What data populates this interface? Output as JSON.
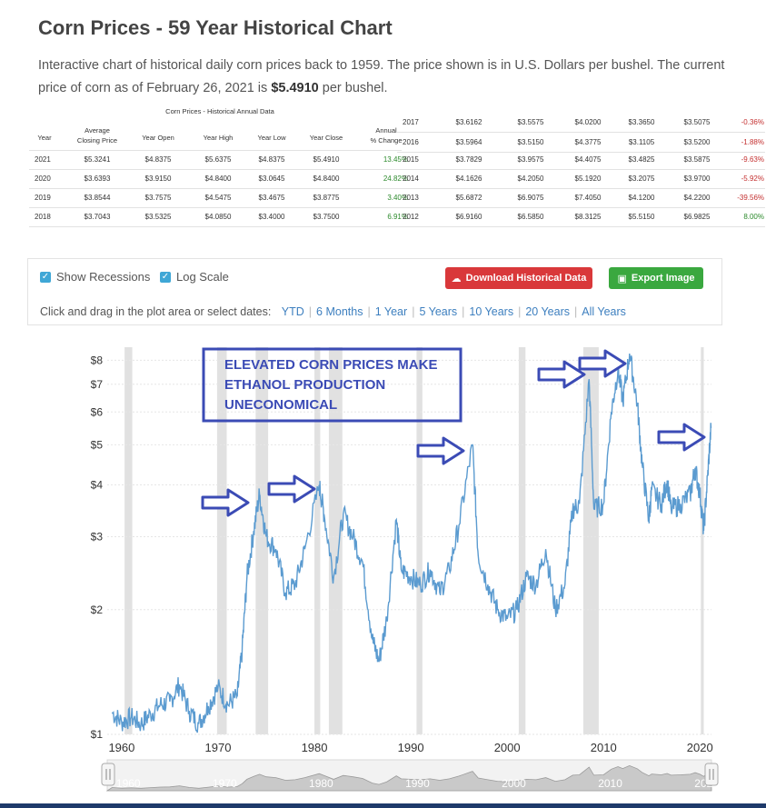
{
  "page": {
    "title": "Corn Prices - 59 Year Historical Chart",
    "desc_pre": "Interactive chart of historical daily corn prices back to 1959. The price shown is in U.S. Dollars per bushel. The current price of corn as of February 26, 2021 is ",
    "desc_price": "$5.4910",
    "desc_post": " per bushel."
  },
  "table": {
    "caption": "Corn Prices - Historical Annual Data",
    "headers": [
      "Year",
      "Average\nClosing Price",
      "Year Open",
      "Year High",
      "Year Low",
      "Year Close",
      "Annual\n% Change"
    ],
    "left_rows": [
      [
        "2021",
        "$5.3241",
        "$4.8375",
        "$5.6375",
        "$4.8375",
        "$5.4910",
        "13.45%"
      ],
      [
        "2020",
        "$3.6393",
        "$3.9150",
        "$4.8400",
        "$3.0645",
        "$4.8400",
        "24.82%"
      ],
      [
        "2019",
        "$3.8544",
        "$3.7575",
        "$4.5475",
        "$3.4675",
        "$3.8775",
        "3.40%"
      ],
      [
        "2018",
        "$3.7043",
        "$3.5325",
        "$4.0850",
        "$3.4000",
        "$3.7500",
        "6.91%"
      ]
    ],
    "right_rows": [
      [
        "2017",
        "$3.6162",
        "$3.5575",
        "$4.0200",
        "$3.3650",
        "$3.5075",
        "-0.36%"
      ],
      [
        "2016",
        "$3.5964",
        "$3.5150",
        "$4.3775",
        "$3.1105",
        "$3.5200",
        "-1.88%"
      ],
      [
        "2015",
        "$3.7829",
        "$3.9575",
        "$4.4075",
        "$3.4825",
        "$3.5875",
        "-9.63%"
      ],
      [
        "2014",
        "$4.1626",
        "$4.2050",
        "$5.1920",
        "$3.2075",
        "$3.9700",
        "-5.92%"
      ],
      [
        "2013",
        "$5.6872",
        "$6.9075",
        "$7.4050",
        "$4.1200",
        "$4.2200",
        "-39.56%"
      ],
      [
        "2012",
        "$6.9160",
        "$6.5850",
        "$8.3125",
        "$5.5150",
        "$6.9825",
        "8.00%"
      ]
    ]
  },
  "controls": {
    "show_recessions": "Show Recessions",
    "log_scale": "Log Scale",
    "download": "Download Historical Data",
    "export": "Export Image",
    "dates_prompt": "Click and drag in the plot area or select dates:",
    "ranges": [
      "YTD",
      "6 Months",
      "1 Year",
      "5 Years",
      "10 Years",
      "20 Years",
      "All Years"
    ]
  },
  "colors": {
    "line": "#5b9bd0",
    "recession": "#dcdcdc",
    "annotation": "#3b4bb5",
    "download_btn": "#d9383a",
    "export_btn": "#3aa83f",
    "checkbox": "#3fa7d6"
  },
  "annotation": {
    "lines": [
      "ELEVATED CORN PRICES MAKE",
      "ETHANOL PRODUCTION",
      "UNECONOMICAL"
    ]
  },
  "chart_data": {
    "type": "line",
    "title": "",
    "xlabel": "",
    "ylabel": "",
    "y_scale": "log",
    "ylim": [
      1,
      8.6
    ],
    "xlim": [
      1958.5,
      2021.2
    ],
    "y_ticks": [
      {
        "value": 1,
        "label": "$1"
      },
      {
        "value": 2,
        "label": "$2"
      },
      {
        "value": 3,
        "label": "$3"
      },
      {
        "value": 4,
        "label": "$4"
      },
      {
        "value": 5,
        "label": "$5"
      },
      {
        "value": 6,
        "label": "$6"
      },
      {
        "value": 7,
        "label": "$7"
      },
      {
        "value": 8,
        "label": "$8"
      }
    ],
    "x_ticks": [
      "1960",
      "1970",
      "1980",
      "1990",
      "2000",
      "2010",
      "2020"
    ],
    "recessions": [
      [
        1960.3,
        1961.1
      ],
      [
        1969.9,
        1970.9
      ],
      [
        1973.9,
        1975.2
      ],
      [
        1980.0,
        1980.6
      ],
      [
        1981.5,
        1982.9
      ],
      [
        1990.6,
        1991.2
      ],
      [
        2001.2,
        2001.9
      ],
      [
        2007.9,
        2009.5
      ],
      [
        2020.1,
        2020.4
      ]
    ],
    "series": [
      {
        "values": [
          {
            "x": 1959.0,
            "y": 1.13
          },
          {
            "x": 1960.0,
            "y": 1.07
          },
          {
            "x": 1961.0,
            "y": 1.1
          },
          {
            "x": 1962.0,
            "y": 1.06
          },
          {
            "x": 1963.0,
            "y": 1.12
          },
          {
            "x": 1964.0,
            "y": 1.18
          },
          {
            "x": 1965.0,
            "y": 1.2
          },
          {
            "x": 1966.0,
            "y": 1.32
          },
          {
            "x": 1967.0,
            "y": 1.14
          },
          {
            "x": 1968.0,
            "y": 1.06
          },
          {
            "x": 1969.0,
            "y": 1.17
          },
          {
            "x": 1970.0,
            "y": 1.3
          },
          {
            "x": 1971.0,
            "y": 1.18
          },
          {
            "x": 1972.0,
            "y": 1.24
          },
          {
            "x": 1972.5,
            "y": 1.6
          },
          {
            "x": 1973.0,
            "y": 2.4
          },
          {
            "x": 1973.7,
            "y": 3.1
          },
          {
            "x": 1974.3,
            "y": 3.8
          },
          {
            "x": 1975.0,
            "y": 3.0
          },
          {
            "x": 1976.0,
            "y": 2.8
          },
          {
            "x": 1977.0,
            "y": 2.2
          },
          {
            "x": 1978.0,
            "y": 2.3
          },
          {
            "x": 1979.0,
            "y": 2.8
          },
          {
            "x": 1980.5,
            "y": 4.0
          },
          {
            "x": 1981.0,
            "y": 3.4
          },
          {
            "x": 1982.0,
            "y": 2.4
          },
          {
            "x": 1983.0,
            "y": 3.4
          },
          {
            "x": 1984.0,
            "y": 3.0
          },
          {
            "x": 1985.0,
            "y": 2.6
          },
          {
            "x": 1986.0,
            "y": 1.7
          },
          {
            "x": 1986.7,
            "y": 1.5
          },
          {
            "x": 1987.5,
            "y": 1.9
          },
          {
            "x": 1988.5,
            "y": 3.3
          },
          {
            "x": 1989.0,
            "y": 2.5
          },
          {
            "x": 1990.0,
            "y": 2.4
          },
          {
            "x": 1991.0,
            "y": 2.3
          },
          {
            "x": 1992.0,
            "y": 2.5
          },
          {
            "x": 1993.0,
            "y": 2.2
          },
          {
            "x": 1994.0,
            "y": 2.5
          },
          {
            "x": 1995.0,
            "y": 3.2
          },
          {
            "x": 1996.4,
            "y": 5.0
          },
          {
            "x": 1997.0,
            "y": 2.7
          },
          {
            "x": 1998.0,
            "y": 2.3
          },
          {
            "x": 1999.0,
            "y": 2.0
          },
          {
            "x": 2000.0,
            "y": 1.9
          },
          {
            "x": 2001.0,
            "y": 2.0
          },
          {
            "x": 2002.0,
            "y": 2.4
          },
          {
            "x": 2003.0,
            "y": 2.3
          },
          {
            "x": 2004.0,
            "y": 2.8
          },
          {
            "x": 2005.0,
            "y": 2.0
          },
          {
            "x": 2006.0,
            "y": 2.3
          },
          {
            "x": 2006.8,
            "y": 3.5
          },
          {
            "x": 2007.5,
            "y": 3.6
          },
          {
            "x": 2008.5,
            "y": 7.2
          },
          {
            "x": 2009.0,
            "y": 3.5
          },
          {
            "x": 2010.0,
            "y": 3.6
          },
          {
            "x": 2010.8,
            "y": 6.0
          },
          {
            "x": 2011.5,
            "y": 7.6
          },
          {
            "x": 2012.0,
            "y": 6.4
          },
          {
            "x": 2012.7,
            "y": 8.3
          },
          {
            "x": 2013.5,
            "y": 6.3
          },
          {
            "x": 2014.0,
            "y": 4.5
          },
          {
            "x": 2014.7,
            "y": 3.3
          },
          {
            "x": 2015.0,
            "y": 3.9
          },
          {
            "x": 2016.0,
            "y": 3.6
          },
          {
            "x": 2016.6,
            "y": 4.1
          },
          {
            "x": 2017.0,
            "y": 3.5
          },
          {
            "x": 2018.0,
            "y": 3.6
          },
          {
            "x": 2019.0,
            "y": 3.8
          },
          {
            "x": 2019.5,
            "y": 4.4
          },
          {
            "x": 2020.0,
            "y": 3.8
          },
          {
            "x": 2020.4,
            "y": 3.1
          },
          {
            "x": 2020.8,
            "y": 4.2
          },
          {
            "x": 2021.15,
            "y": 5.49
          }
        ]
      }
    ]
  }
}
